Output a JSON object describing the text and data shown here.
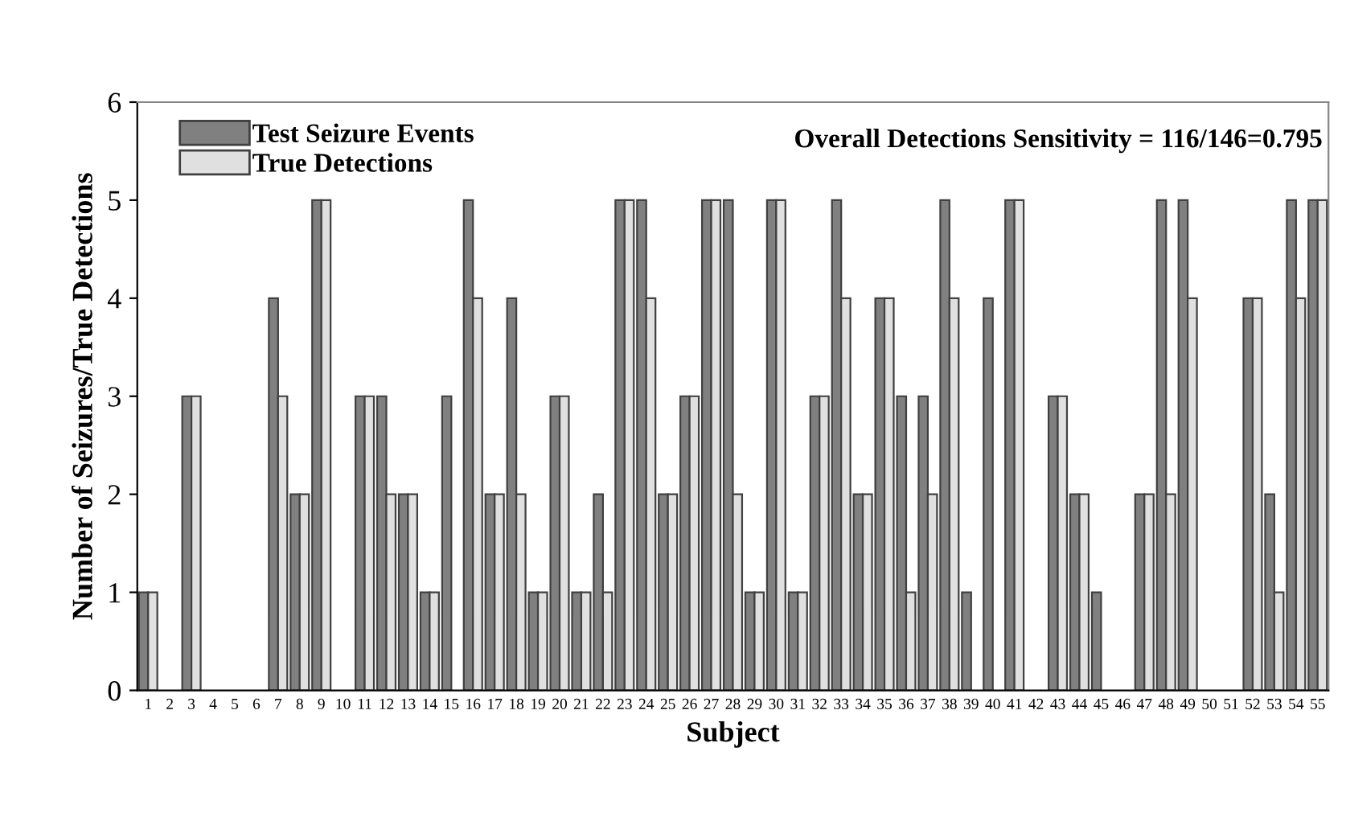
{
  "chart_data": {
    "type": "bar",
    "xlabel": "Subject",
    "ylabel": "Number of Seizures/True Detections",
    "categories": [
      "1",
      "2",
      "3",
      "4",
      "5",
      "6",
      "7",
      "8",
      "9",
      "10",
      "11",
      "12",
      "13",
      "14",
      "15",
      "16",
      "17",
      "18",
      "19",
      "20",
      "21",
      "22",
      "23",
      "24",
      "25",
      "26",
      "27",
      "28",
      "29",
      "30",
      "31",
      "32",
      "33",
      "34",
      "35",
      "36",
      "37",
      "38",
      "39",
      "40",
      "41",
      "42",
      "43",
      "44",
      "45",
      "46",
      "47",
      "48",
      "49",
      "50",
      "51",
      "52",
      "53",
      "54",
      "55"
    ],
    "series": [
      {
        "name": "Test Seizure Events",
        "color": "#808080",
        "values": [
          1,
          0,
          3,
          0,
          0,
          0,
          4,
          2,
          5,
          0,
          3,
          3,
          2,
          1,
          3,
          5,
          2,
          4,
          1,
          3,
          1,
          2,
          5,
          5,
          2,
          3,
          5,
          5,
          1,
          5,
          1,
          3,
          5,
          2,
          4,
          3,
          3,
          5,
          1,
          4,
          5,
          0,
          3,
          2,
          1,
          0,
          2,
          5,
          5,
          0,
          0,
          4,
          2,
          5,
          5
        ]
      },
      {
        "name": "True Detections",
        "color": "#e0e0e0",
        "values": [
          1,
          0,
          3,
          0,
          0,
          0,
          3,
          2,
          5,
          0,
          3,
          2,
          2,
          1,
          0,
          4,
          2,
          2,
          1,
          3,
          1,
          1,
          5,
          4,
          2,
          3,
          5,
          2,
          1,
          5,
          1,
          3,
          4,
          2,
          4,
          1,
          2,
          4,
          0,
          0,
          5,
          0,
          3,
          2,
          0,
          0,
          2,
          2,
          4,
          0,
          0,
          4,
          1,
          4,
          5
        ]
      }
    ],
    "ylim": [
      0,
      6
    ],
    "yticks": [
      0,
      1,
      2,
      3,
      4,
      5,
      6
    ],
    "grid": false,
    "legend": "top left",
    "annotations": [
      "Overall Detections Sensitivity = 116/146=0.795"
    ]
  }
}
